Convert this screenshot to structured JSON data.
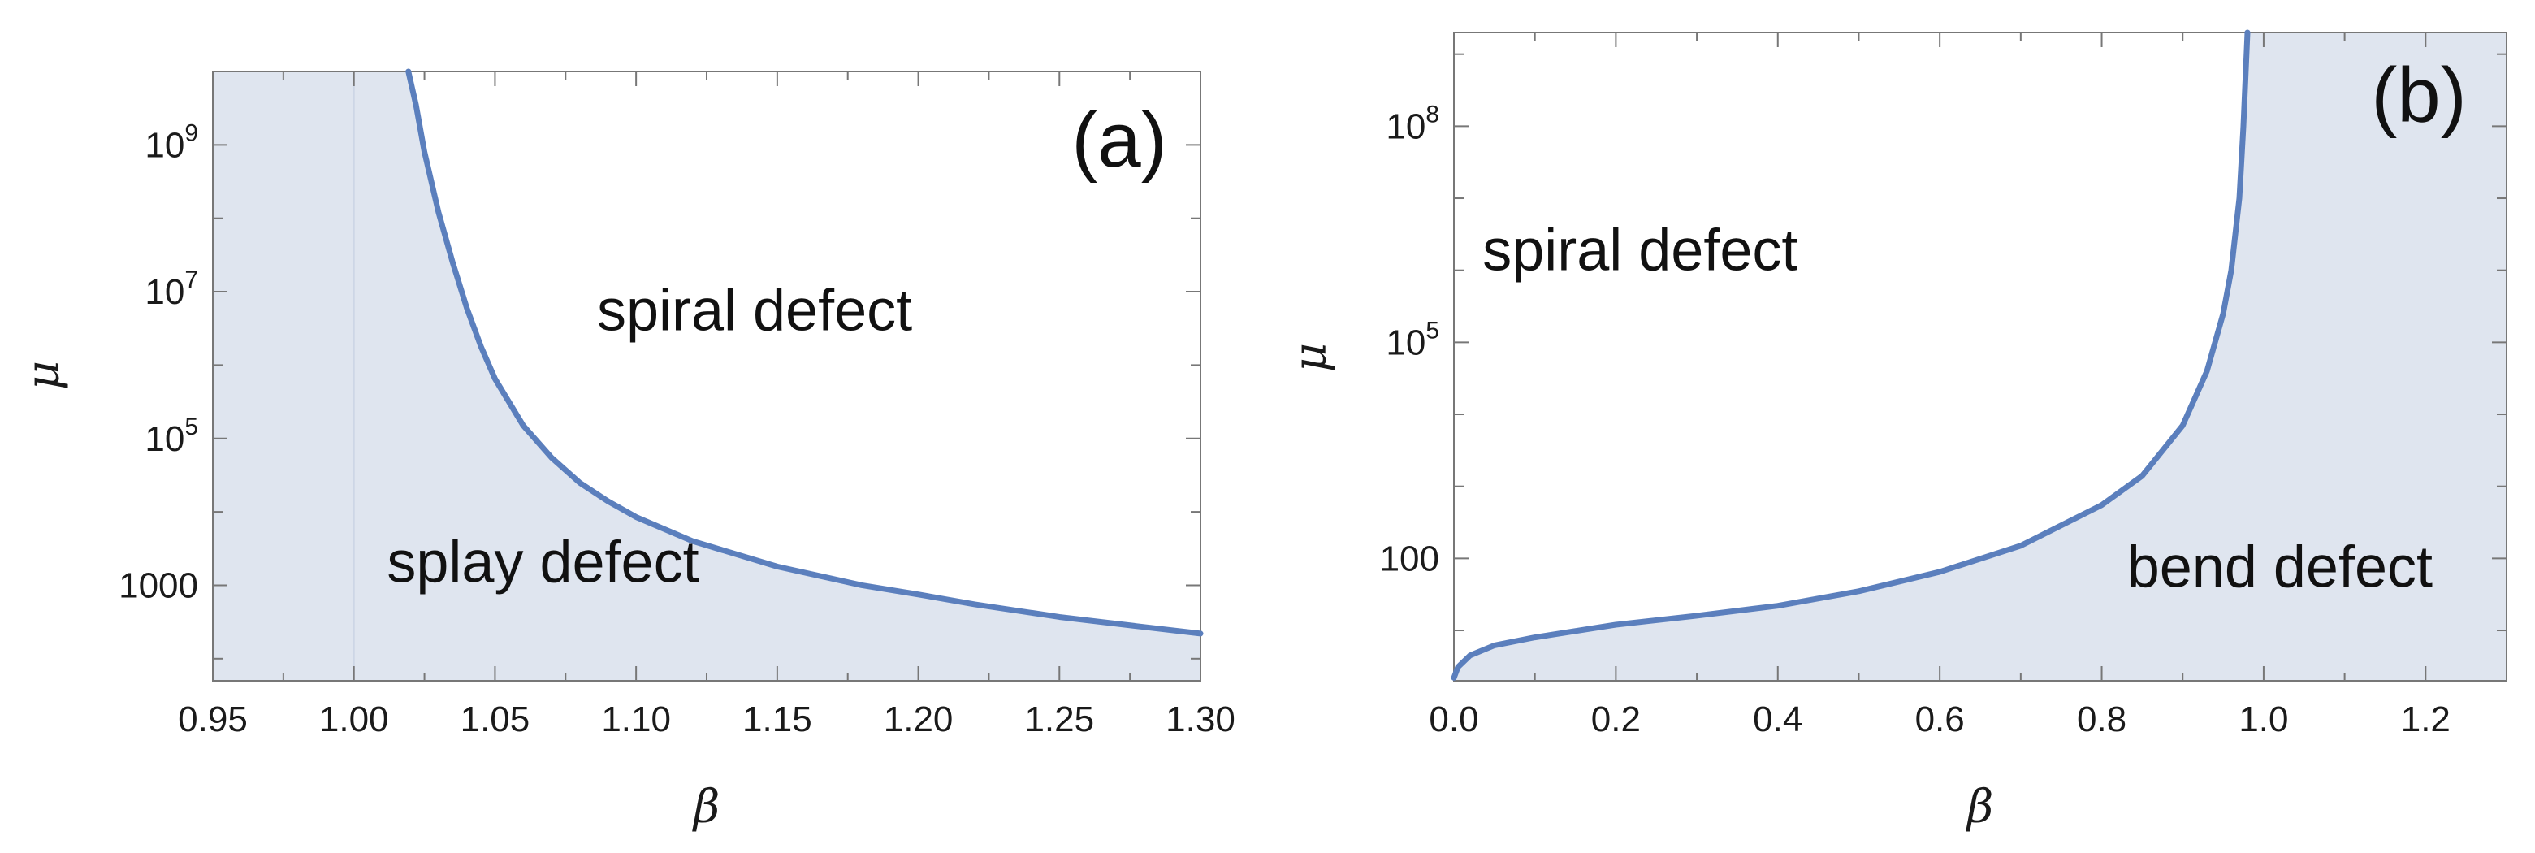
{
  "colors": {
    "fill": "#dfe5ef",
    "curve": "#5b7fbd",
    "frame": "#777777",
    "refline": "#cdd6e6"
  },
  "chart_data": [
    {
      "type": "area",
      "panel_label": "(a)",
      "xlabel": "β",
      "ylabel": "μ",
      "xscale": "linear",
      "yscale": "log",
      "xlim": [
        0.95,
        1.3
      ],
      "ylim": [
        50,
        10000000000
      ],
      "x_ticks": [
        0.95,
        1.0,
        1.05,
        1.1,
        1.15,
        1.2,
        1.25,
        1.3
      ],
      "x_tick_labels": [
        "0.95",
        "1.00",
        "1.05",
        "1.10",
        "1.15",
        "1.20",
        "1.25",
        "1.30"
      ],
      "y_ticks": [
        {
          "value": 1000,
          "text": "1000",
          "base": "",
          "exp": ""
        },
        {
          "value": 100000,
          "text": "",
          "base": "10",
          "exp": "5"
        },
        {
          "value": 10000000,
          "text": "",
          "base": "10",
          "exp": "7"
        },
        {
          "value": 1000000000,
          "text": "",
          "base": "10",
          "exp": "9"
        }
      ],
      "reference_line_x": 1.0,
      "shaded": "below-curve",
      "series": [
        {
          "name": "boundary",
          "x": [
            1.0193,
            1.022,
            1.025,
            1.03,
            1.035,
            1.04,
            1.045,
            1.05,
            1.06,
            1.07,
            1.08,
            1.09,
            1.1,
            1.12,
            1.15,
            1.18,
            1.2,
            1.22,
            1.25,
            1.28,
            1.3
          ],
          "y": [
            10000000000,
            3500000000,
            800000000,
            120000000,
            25000000,
            6000000,
            1800000,
            650000,
            150000,
            55000,
            25000,
            14000,
            8500,
            4000,
            1800,
            1000,
            750,
            550,
            370,
            270,
            220
          ]
        }
      ],
      "annotations": [
        {
          "text": "spiral defect",
          "x": 1.142,
          "y": 3000000
        },
        {
          "text": "splay defect",
          "x": 1.067,
          "y": 1100
        }
      ]
    },
    {
      "type": "area",
      "panel_label": "(b)",
      "xlabel": "β",
      "ylabel": "μ",
      "xscale": "linear",
      "yscale": "log",
      "xlim": [
        0.0,
        1.3
      ],
      "ylim": [
        2,
        2000000000
      ],
      "x_ticks": [
        0.0,
        0.2,
        0.4,
        0.6,
        0.8,
        1.0,
        1.2
      ],
      "x_tick_labels": [
        "0.0",
        "0.2",
        "0.4",
        "0.6",
        "0.8",
        "1.0",
        "1.2"
      ],
      "y_ticks": [
        {
          "value": 100,
          "text": "100",
          "base": "",
          "exp": ""
        },
        {
          "value": 100000,
          "text": "",
          "base": "10",
          "exp": "5"
        },
        {
          "value": 100000000,
          "text": "",
          "base": "10",
          "exp": "8"
        }
      ],
      "shaded": "below-curve",
      "series": [
        {
          "name": "boundary",
          "x": [
            0.0,
            0.005,
            0.02,
            0.05,
            0.1,
            0.2,
            0.3,
            0.4,
            0.5,
            0.6,
            0.7,
            0.8,
            0.85,
            0.9,
            0.93,
            0.95,
            0.96,
            0.97,
            0.975,
            0.98
          ],
          "y": [
            2.2,
            3.1,
            4.5,
            6.2,
            8,
            12,
            16,
            22,
            35,
            65,
            150,
            550,
            1400,
            7000,
            40000,
            250000,
            1000000,
            10000000,
            100000000,
            2000000000
          ]
        }
      ],
      "annotations": [
        {
          "text": "spiral defect",
          "x": 0.23,
          "y": 1000000
        },
        {
          "text": "bend defect",
          "x": 1.02,
          "y": 40
        }
      ]
    }
  ]
}
